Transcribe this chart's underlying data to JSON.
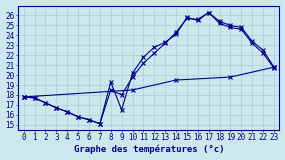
{
  "xlabel": "Graphe des températures (°c)",
  "bg_color": "#cce8ec",
  "grid_color": "#aaccd4",
  "line_color": "#00008b",
  "xlim": [
    -0.5,
    23.5
  ],
  "ylim": [
    14.5,
    27.0
  ],
  "xticks": [
    0,
    1,
    2,
    3,
    4,
    5,
    6,
    7,
    8,
    9,
    10,
    11,
    12,
    13,
    14,
    15,
    16,
    17,
    18,
    19,
    20,
    21,
    22,
    23
  ],
  "yticks": [
    15,
    16,
    17,
    18,
    19,
    20,
    21,
    22,
    23,
    24,
    25,
    26
  ],
  "line1_x": [
    0,
    1,
    2,
    3,
    4,
    5,
    6,
    7,
    8,
    9,
    10,
    11,
    12,
    13,
    14,
    15,
    16,
    17,
    18,
    19,
    20,
    21,
    22,
    23
  ],
  "line1_y": [
    17.8,
    17.7,
    17.2,
    16.7,
    16.3,
    15.8,
    15.5,
    15.1,
    19.3,
    16.5,
    20.2,
    21.8,
    22.8,
    23.3,
    24.1,
    25.8,
    25.5,
    26.3,
    25.2,
    24.8,
    24.6,
    23.2,
    22.2,
    20.7
  ],
  "line2_x": [
    0,
    1,
    2,
    3,
    4,
    5,
    6,
    7,
    8,
    9,
    10,
    11,
    12,
    13,
    14,
    15,
    16,
    17,
    18,
    19,
    20,
    21,
    22,
    23
  ],
  "line2_y": [
    17.8,
    17.7,
    17.2,
    16.7,
    16.3,
    15.8,
    15.5,
    15.1,
    18.5,
    18.0,
    19.8,
    21.2,
    22.2,
    23.2,
    24.3,
    25.7,
    25.6,
    26.3,
    25.4,
    25.0,
    24.8,
    23.4,
    22.5,
    20.8
  ],
  "line3_x": [
    0,
    10,
    14,
    19,
    23
  ],
  "line3_y": [
    17.8,
    18.5,
    19.5,
    19.8,
    20.8
  ]
}
